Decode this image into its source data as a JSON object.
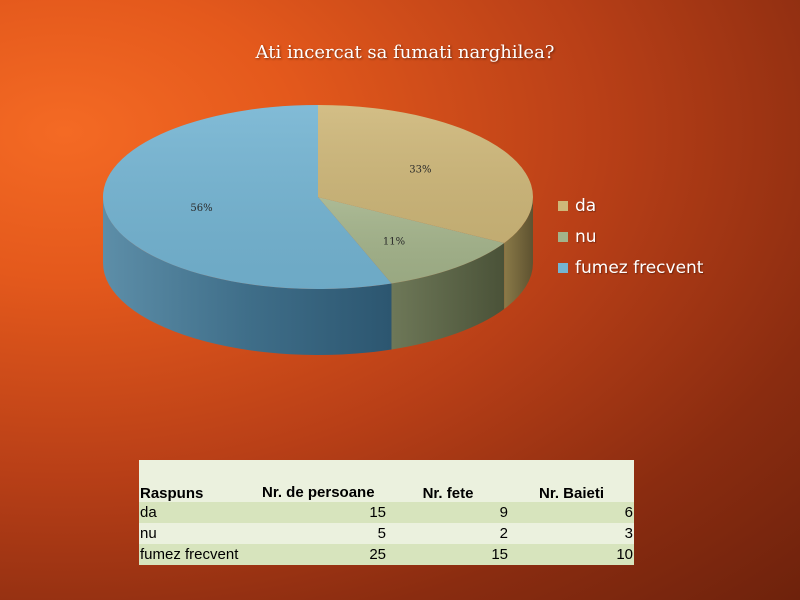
{
  "chart_data": {
    "type": "pie",
    "title": "Ati incercat sa fumati narghilea?",
    "categories": [
      "da",
      "nu",
      "fumez frecvent"
    ],
    "values": [
      15,
      5,
      25
    ],
    "data_labels": [
      "33%",
      "11%",
      "56%"
    ],
    "colors": [
      "#ceb779",
      "#a3b38a",
      "#74b4d2"
    ],
    "style": "3d",
    "legend": "right"
  },
  "table": {
    "headers": [
      "Raspuns",
      "Nr. de persoane",
      "Nr. fete",
      "Nr. Baieti"
    ],
    "rows": [
      [
        "da",
        "15",
        "9",
        "6"
      ],
      [
        "nu",
        "5",
        "2",
        "3"
      ],
      [
        "fumez frecvent",
        "25",
        "15",
        "10"
      ]
    ]
  }
}
